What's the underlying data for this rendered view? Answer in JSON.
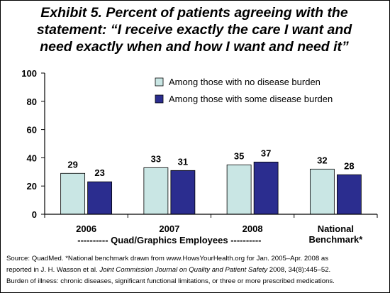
{
  "title_lines": [
    "Exhibit 5. Percent of patients agreeing with the",
    "statement: “I receive exactly the care I want and",
    "need exactly when and how I want and need it”"
  ],
  "group_label": "---------- Quad/Graphics Employees ----------",
  "source": {
    "line1": "Source: QuadMed. *National benchmark drawn from www.HowsYourHealth.org for Jan. 2005–Apr. 2008 as",
    "line2_pre": "reported in J. H. Wasson et al. ",
    "line2_italic": "Joint Commission Journal on Quality and Patient Safety",
    "line2_post": " 2008, 34(8):445–52.",
    "line3": "Burden of illness: chronic diseases, significant functional limitations, or three or more prescribed medications."
  },
  "colors": {
    "no_burden": "#c9e6e4",
    "some_burden": "#2b2d8f",
    "axis": "#000000"
  },
  "chart_data": {
    "type": "bar",
    "categories": [
      "2006",
      "2007",
      "2008",
      "National\nBenchmark*"
    ],
    "series": [
      {
        "name": "Among those with no disease burden",
        "values": [
          29,
          33,
          35,
          32
        ],
        "color": "#c9e6e4"
      },
      {
        "name": "Among those with some disease burden",
        "values": [
          23,
          31,
          37,
          28
        ],
        "color": "#2b2d8f"
      }
    ],
    "ylim": [
      0,
      100
    ],
    "yticks": [
      0,
      20,
      40,
      60,
      80,
      100
    ],
    "grid": false,
    "legend_position": "top-right",
    "data_labels": true
  }
}
